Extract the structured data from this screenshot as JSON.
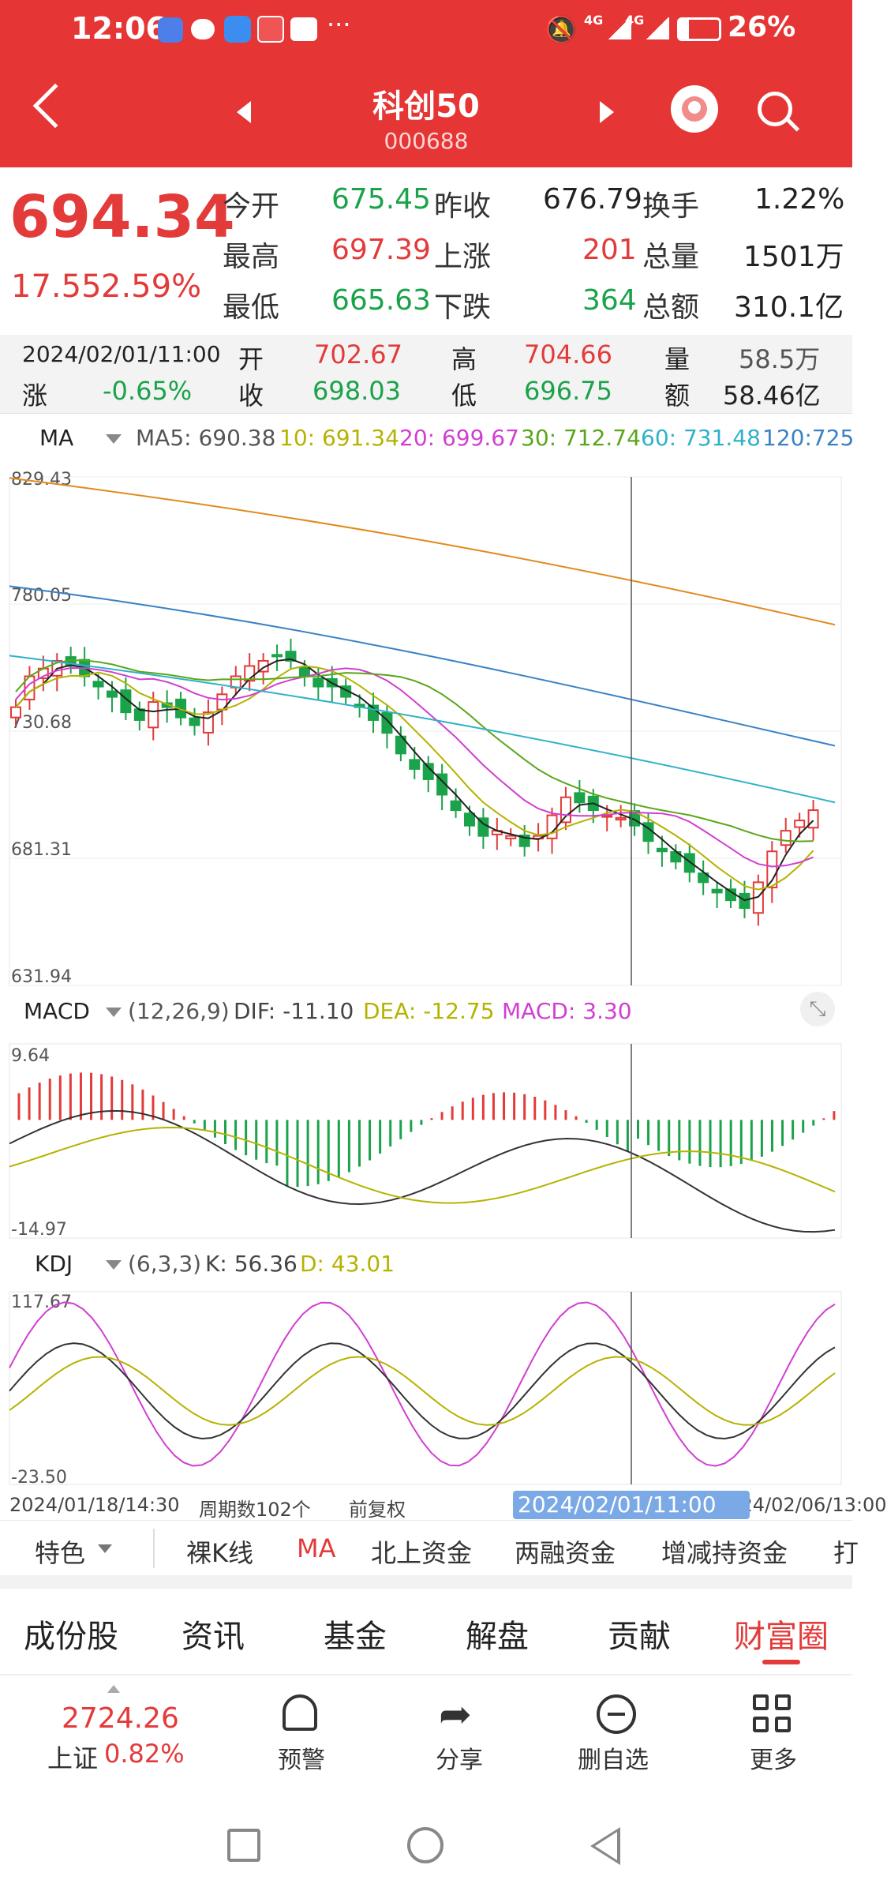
{
  "status": {
    "time": "12:06",
    "signal1": "4G",
    "signal2": "4G",
    "battery": "26%"
  },
  "header": {
    "title": "科创50",
    "code": "000688"
  },
  "quote": {
    "price": "694.34",
    "change": "17.55",
    "change_pct": "2.59%",
    "open_label": "今开",
    "open": "675.45",
    "prevclose_label": "昨收",
    "prevclose": "676.79",
    "turnover_label": "换手",
    "turnover": "1.22%",
    "high_label": "最高",
    "high": "697.39",
    "up_label": "上涨",
    "up": "201",
    "volume_label": "总量",
    "volume": "1501万",
    "low_label": "最低",
    "low": "665.63",
    "down_label": "下跌",
    "down": "364",
    "amount_label": "总额",
    "amount": "310.1亿"
  },
  "detail": {
    "datetime": "2024/02/01/11:00",
    "open_label": "开",
    "open": "702.67",
    "high_label": "高",
    "high": "704.66",
    "vol_label": "量",
    "vol": "58.5万",
    "chg_label": "涨",
    "chg": "-0.65%",
    "close_label": "收",
    "close": "698.03",
    "low_label": "低",
    "low": "696.75",
    "amt_label": "额",
    "amt": "58.46亿"
  },
  "ma": {
    "label": "MA",
    "ma5": "MA5: 690.38",
    "ma10": "10: 691.34",
    "ma20": "20: 699.67",
    "ma30": "30: 712.74",
    "ma60": "60: 731.48",
    "ma120": "120:725",
    "y_ticks": [
      "829.43",
      "780.05",
      "730.68",
      "681.31",
      "631.94"
    ],
    "colors": {
      "ma5": "#222222",
      "ma10": "#b5b300",
      "ma20": "#d13fd1",
      "ma30": "#5aa61a",
      "ma60": "#2fb2c8",
      "ma120": "#3a82c4",
      "ma250": "#e08a1e"
    }
  },
  "macd": {
    "label": "MACD",
    "params": "(12,26,9)",
    "dif": "DIF: -11.10",
    "dea": "DEA: -12.75",
    "macd": "MACD: 3.30",
    "y_top": "9.64",
    "y_bottom": "-14.97"
  },
  "kdj": {
    "label": "KDJ",
    "params": "(6,3,3)",
    "k": "K: 56.36",
    "d": "D: 43.01",
    "y_top": "117.67",
    "y_bottom": "-23.50"
  },
  "axis": {
    "start": "2024/01/18/14:30",
    "period_count": "周期数102个",
    "adjust": "前复权",
    "cursor_date": "2024/02/01/11:00",
    "end": "2024/02/06/13:00"
  },
  "tool_tabs": [
    "特色",
    "裸K线",
    "MA",
    "北上资金",
    "两融资金",
    "增减持资金",
    "打"
  ],
  "main_tabs": [
    "成份股",
    "资讯",
    "基金",
    "解盘",
    "贡献",
    "财富圈"
  ],
  "index_ticker": {
    "value": "2724.26",
    "name": "上证",
    "pct": "0.82%"
  },
  "bottom_nav": {
    "alert": "预警",
    "share": "分享",
    "delete": "删自选",
    "more": "更多"
  },
  "chart_data": [
    {
      "type": "candlestick",
      "title": "MA",
      "ylim": [
        631.94,
        829.43
      ],
      "y_ticks": [
        829.43,
        780.05,
        730.68,
        681.31,
        631.94
      ],
      "series": [
        {
          "name": "MA5",
          "last": 690.38
        },
        {
          "name": "MA10",
          "last": 691.34
        },
        {
          "name": "MA20",
          "last": 699.67
        },
        {
          "name": "MA30",
          "last": 712.74
        },
        {
          "name": "MA60",
          "last": 731.48
        },
        {
          "name": "MA120",
          "last": 725
        }
      ],
      "close_path": [
        740,
        752,
        755,
        758,
        756,
        752,
        748,
        744,
        738,
        735,
        742,
        740,
        736,
        733,
        738,
        745,
        752,
        756,
        758,
        760,
        758,
        752,
        748,
        748,
        744,
        740,
        735,
        730,
        722,
        716,
        712,
        706,
        700,
        694,
        690,
        692,
        690,
        686,
        690,
        698,
        705,
        703,
        700,
        698,
        697,
        694,
        688,
        684,
        680,
        676,
        672,
        668,
        665,
        662,
        672,
        684,
        692,
        696,
        700
      ]
    },
    {
      "type": "bar",
      "title": "MACD",
      "ylim": [
        -14.97,
        9.64
      ],
      "series": [
        {
          "name": "DIF",
          "last": -11.1
        },
        {
          "name": "DEA",
          "last": -12.75
        },
        {
          "name": "MACD",
          "last": 3.3
        }
      ]
    },
    {
      "type": "line",
      "title": "KDJ",
      "ylim": [
        -23.5,
        117.67
      ],
      "series": [
        {
          "name": "K",
          "last": 56.36
        },
        {
          "name": "D",
          "last": 43.01
        }
      ]
    }
  ]
}
